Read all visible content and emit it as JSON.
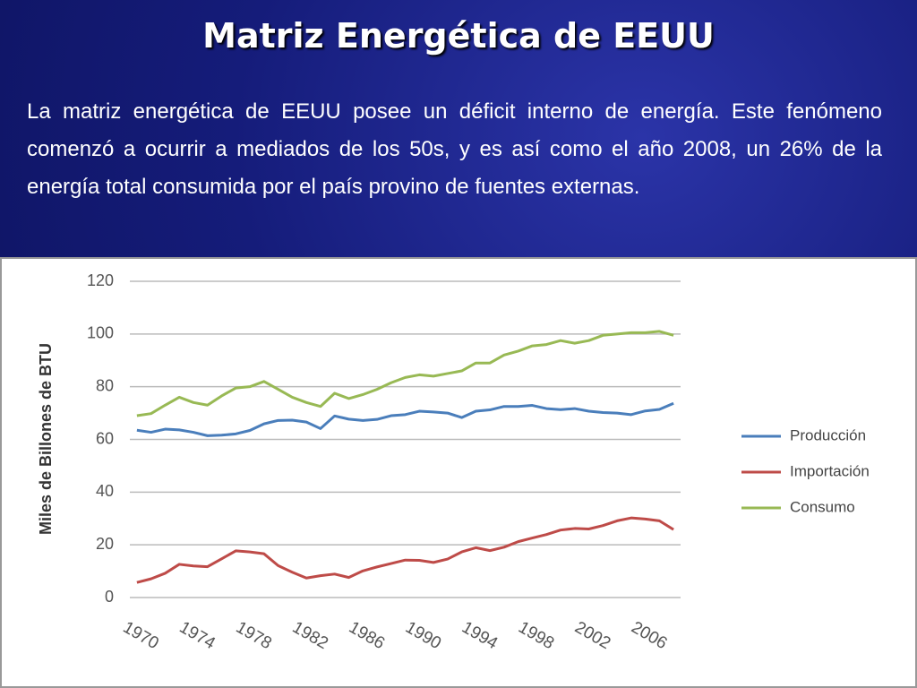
{
  "slide": {
    "title": "Matriz Energética de EEUU",
    "body": "La matriz energética de EEUU posee un déficit interno de energía. Este fenómeno comenzó a ocurrir a mediados de los 50s, y es así como el año 2008, un 26% de la energía total consumida por el país provino de fuentes externas."
  },
  "chart_data": {
    "type": "line",
    "y_label": "Miles de Billones de BTU",
    "x": [
      1970,
      1971,
      1972,
      1973,
      1974,
      1975,
      1976,
      1977,
      1978,
      1979,
      1980,
      1981,
      1982,
      1983,
      1984,
      1985,
      1986,
      1987,
      1988,
      1989,
      1990,
      1991,
      1992,
      1993,
      1994,
      1995,
      1996,
      1997,
      1998,
      1999,
      2000,
      2001,
      2002,
      2003,
      2004,
      2005,
      2006,
      2007,
      2008
    ],
    "series": [
      {
        "name": "Producción",
        "color": "#4a7ebb",
        "values": [
          63.5,
          62.7,
          63.9,
          63.6,
          62.7,
          61.4,
          61.6,
          62.1,
          63.4,
          65.9,
          67.2,
          67.3,
          66.6,
          64.1,
          68.9,
          67.7,
          67.2,
          67.6,
          69.0,
          69.4,
          70.7,
          70.4,
          70.0,
          68.3,
          70.7,
          71.2,
          72.5,
          72.5,
          72.9,
          71.7,
          71.3,
          71.7,
          70.7,
          70.2,
          70.0,
          69.4,
          70.8,
          71.4,
          73.7
        ]
      },
      {
        "name": "Importación",
        "color": "#be4b48",
        "values": [
          5.7,
          7.1,
          9.2,
          12.6,
          12.0,
          11.7,
          14.7,
          17.7,
          17.3,
          16.6,
          12.1,
          9.6,
          7.4,
          8.3,
          8.9,
          7.6,
          10.1,
          11.6,
          12.9,
          14.2,
          14.1,
          13.3,
          14.6,
          17.3,
          18.9,
          17.8,
          19.1,
          21.2,
          22.6,
          23.9,
          25.6,
          26.2,
          26.0,
          27.3,
          29.1,
          30.2,
          29.8,
          29.1,
          25.8
        ]
      },
      {
        "name": "Consumo",
        "color": "#98b954",
        "values": [
          69,
          69.8,
          73,
          76,
          74,
          73,
          76.5,
          79.5,
          80,
          82,
          79,
          76,
          74,
          72.5,
          77.5,
          75.5,
          77,
          79,
          81.5,
          83.5,
          84.5,
          84,
          85,
          86,
          89,
          89,
          92,
          93.5,
          95.5,
          96,
          97.5,
          96.5,
          97.5,
          99.5,
          100,
          100.5,
          100.5,
          101,
          99.5
        ]
      }
    ],
    "xlim": [
      1969.5,
      2008.5
    ],
    "xticks": [
      1970,
      1974,
      1978,
      1982,
      1986,
      1990,
      1994,
      1998,
      2002,
      2006
    ],
    "ylim": [
      0,
      120
    ],
    "yticks": [
      0,
      20,
      40,
      60,
      80,
      100,
      120
    ],
    "grid": true,
    "legend": "right"
  }
}
